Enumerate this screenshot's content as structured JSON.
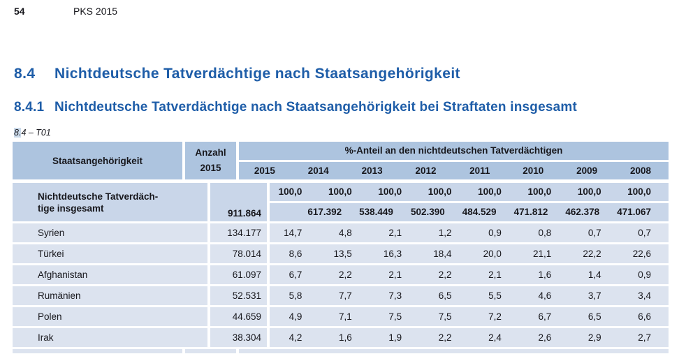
{
  "page": {
    "number": "54",
    "header": "PKS 2015"
  },
  "headings": {
    "h1": {
      "number": "8.4",
      "title": "Nichtdeutsche Tatverdächtige nach Staatsangehörigkeit"
    },
    "h2": {
      "number": "8.4.1",
      "title": "Nichtdeutsche Tatverdächtige nach Staatsangehörigkeit bei Straftaten insgesamt"
    }
  },
  "table": {
    "label": "8.4 – T01",
    "col1_header": "Staatsangehörigkeit",
    "col2_header_line1": "Anzahl",
    "col2_header_line2": "2015",
    "col3_header": "%-Anteil an den nichtdeutschen Tatverdächtigen",
    "years": [
      "2015",
      "2014",
      "2013",
      "2012",
      "2011",
      "2010",
      "2009",
      "2008"
    ],
    "total_row": {
      "label_line1": "Nichtdeutsche Tatverdäch-",
      "label_line2": "tige insgesamt",
      "anzahl": "911.864",
      "percent": [
        "100,0",
        "100,0",
        "100,0",
        "100,0",
        "100,0",
        "100,0",
        "100,0",
        "100,0"
      ],
      "counts": [
        "",
        "617.392",
        "538.449",
        "502.390",
        "484.529",
        "471.812",
        "462.378",
        "471.067"
      ]
    },
    "rows": [
      {
        "name": "Syrien",
        "anzahl": "134.177",
        "values": [
          "14,7",
          "4,8",
          "2,1",
          "1,2",
          "0,9",
          "0,8",
          "0,7",
          "0,7"
        ]
      },
      {
        "name": "Türkei",
        "anzahl": "78.014",
        "values": [
          "8,6",
          "13,5",
          "16,3",
          "18,4",
          "20,0",
          "21,1",
          "22,2",
          "22,6"
        ]
      },
      {
        "name": "Afghanistan",
        "anzahl": "61.097",
        "values": [
          "6,7",
          "2,2",
          "2,1",
          "2,2",
          "2,1",
          "1,6",
          "1,4",
          "0,9"
        ]
      },
      {
        "name": "Rumänien",
        "anzahl": "52.531",
        "values": [
          "5,8",
          "7,7",
          "7,3",
          "6,5",
          "5,5",
          "4,6",
          "3,7",
          "3,4"
        ]
      },
      {
        "name": "Polen",
        "anzahl": "44.659",
        "values": [
          "4,9",
          "7,1",
          "7,5",
          "7,5",
          "7,2",
          "6,7",
          "6,5",
          "6,6"
        ]
      },
      {
        "name": "Irak",
        "anzahl": "38.304",
        "values": [
          "4,2",
          "1,6",
          "1,9",
          "2,2",
          "2,4",
          "2,6",
          "2,9",
          "2,7"
        ]
      }
    ]
  },
  "colors": {
    "heading_blue": "#1e5da8",
    "table_header_bg": "#adc4df",
    "total_row_bg": "#c9d6e9",
    "data_row_bg": "#dce3ef",
    "text": "#17171c"
  }
}
